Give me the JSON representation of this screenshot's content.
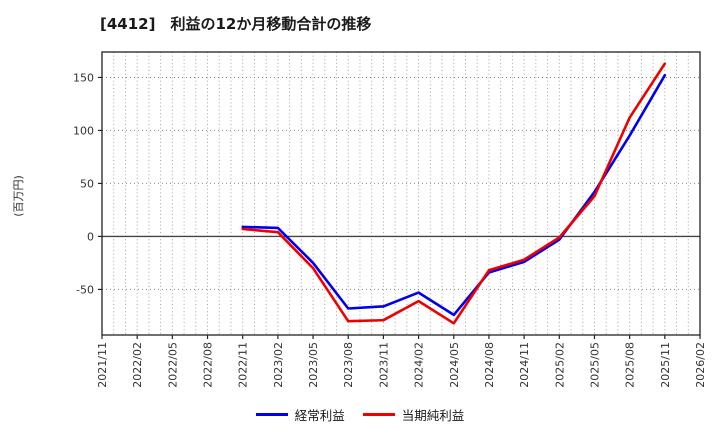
{
  "chart_data": {
    "type": "line",
    "title": "[4412]　利益の12か月移動合計の推移",
    "ylabel": "(百万円)",
    "x_tick_labels": [
      "2021/11",
      "2022/02",
      "2022/05",
      "2022/08",
      "2022/11",
      "2023/02",
      "2023/05",
      "2023/08",
      "2023/11",
      "2024/02",
      "2024/05",
      "2024/08",
      "2024/11",
      "2025/02",
      "2025/05",
      "2025/08",
      "2025/11",
      "2026/02"
    ],
    "x_tick_interval_months": 3,
    "x_months_total": 52,
    "ylim": [
      -93,
      174
    ],
    "yticks": [
      -50,
      0,
      50,
      100,
      150
    ],
    "grid": "monthly dotted vertical, dotted horizontal at 50-steps, solid zero line",
    "legend_position": "bottom",
    "point_dates": [
      "2022/11",
      "2023/02",
      "2023/05",
      "2023/08",
      "2023/11",
      "2024/02",
      "2024/05",
      "2024/08",
      "2024/11",
      "2025/02",
      "2025/05",
      "2025/08",
      "2025/11"
    ],
    "point_month_offsets": [
      12,
      15,
      18,
      21,
      24,
      27,
      30,
      33,
      36,
      39,
      42,
      45,
      48
    ],
    "series": [
      {
        "name": "経常利益",
        "color": "#0000ee",
        "values": [
          9,
          8,
          -25,
          -68,
          -66,
          -53,
          -74,
          -34,
          -24,
          -3,
          42,
          95,
          152
        ]
      },
      {
        "name": "当期純利益",
        "color": "#ee0000",
        "values": [
          7,
          4,
          -30,
          -80,
          -79,
          -61,
          -82,
          -32,
          -22,
          -1,
          38,
          112,
          163
        ]
      }
    ]
  }
}
